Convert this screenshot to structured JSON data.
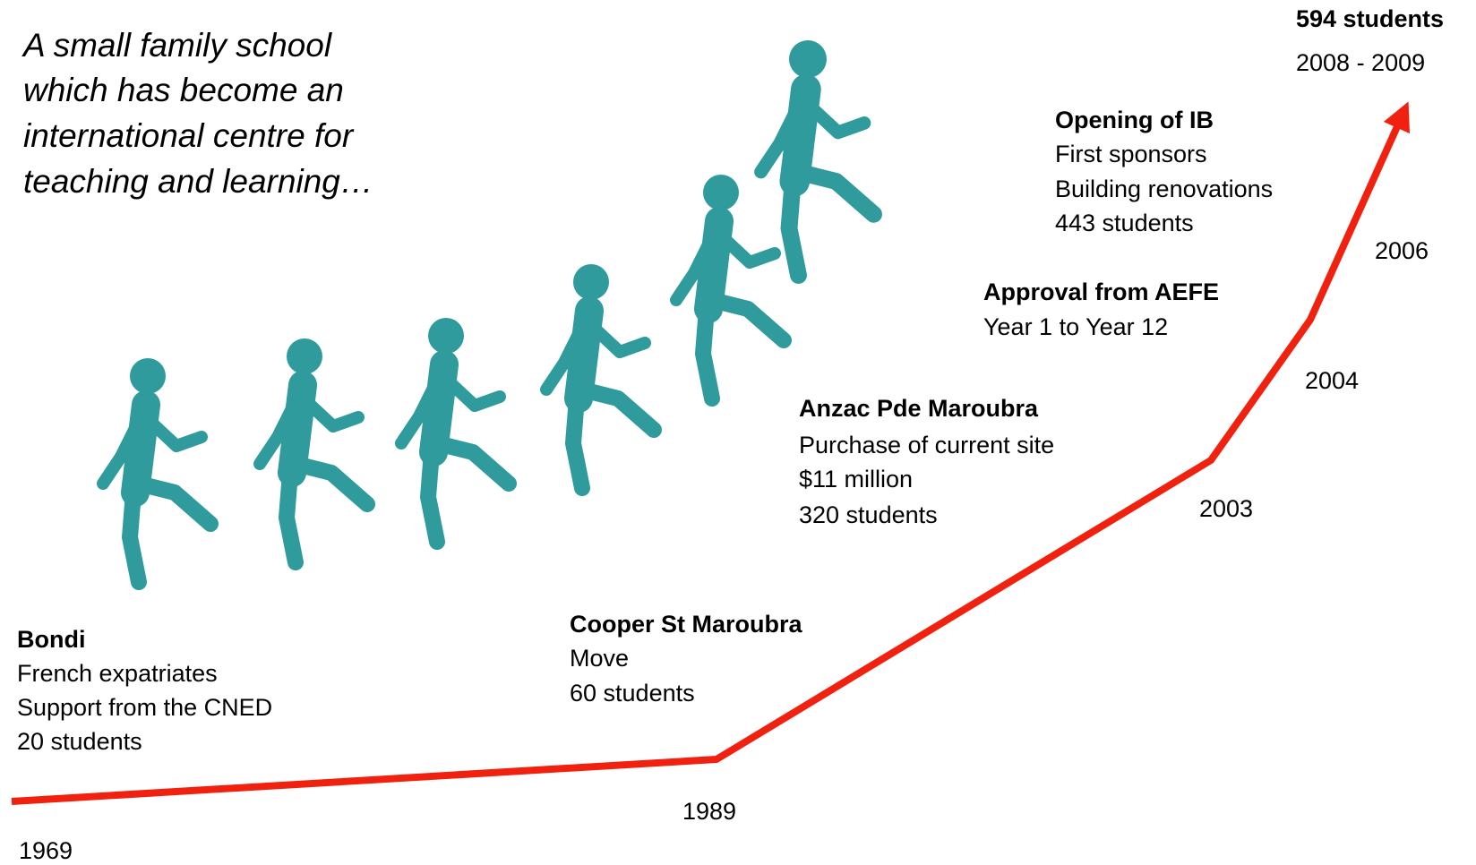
{
  "intro_lines": [
    "A small family school",
    "which has become an",
    "international centre for",
    "teaching and learning…"
  ],
  "milestones": [
    {
      "title": "Bondi",
      "lines": [
        "French expatriates",
        "Support from the CNED",
        "20 students"
      ]
    },
    {
      "title": "Cooper St Maroubra",
      "lines": [
        "Move",
        "60  students"
      ]
    },
    {
      "title": "Anzac Pde Maroubra",
      "lines": [
        "Purchase of current site",
        "$11 million",
        "320 students"
      ]
    },
    {
      "title": "Approval from AEFE",
      "lines": [
        "Year 1 to Year 12"
      ]
    },
    {
      "title": "Opening of IB",
      "lines": [
        "First  sponsors",
        "Building renovations",
        "443 students"
      ]
    },
    {
      "title": "594 students",
      "lines": [
        "2008 - 2009"
      ]
    }
  ],
  "years": [
    "1969",
    "1989",
    "2003",
    "2004",
    "2006"
  ]
}
